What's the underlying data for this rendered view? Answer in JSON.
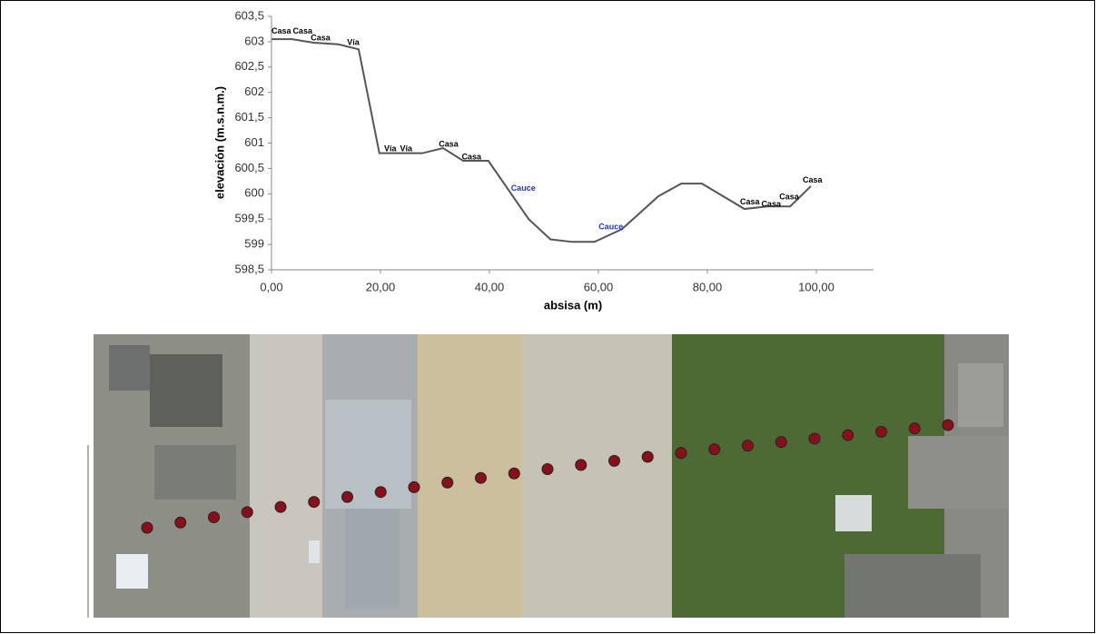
{
  "chart_data": {
    "type": "line",
    "xlabel": "absisa (m)",
    "ylabel": "elevación (m.s.n.m.)",
    "x": [
      0,
      3.8,
      7.7,
      12.2,
      16,
      19.8,
      23.5,
      27.7,
      31.5,
      35.2,
      39.8,
      47.2,
      51.2,
      55.2,
      59.3,
      64.3,
      71,
      75.2,
      79,
      86.8,
      91,
      95.2,
      99
    ],
    "series": [
      {
        "color": "#555555",
        "values": [
          603.05,
          603.05,
          602.98,
          602.95,
          602.85,
          600.8,
          600.8,
          600.8,
          600.9,
          600.65,
          600.65,
          599.5,
          599.1,
          599.05,
          599.05,
          599.3,
          599.95,
          600.2,
          600.2,
          599.7,
          599.75,
          599.75,
          600.15
        ]
      }
    ],
    "xlim": [
      0,
      110
    ],
    "xticks": [
      {
        "value": 0,
        "label": "0,00"
      },
      {
        "value": 20,
        "label": "20,00"
      },
      {
        "value": 40,
        "label": "40,00"
      },
      {
        "value": 60,
        "label": "60,00"
      },
      {
        "value": 80,
        "label": "80,00"
      },
      {
        "value": 100,
        "label": "100,00"
      }
    ],
    "ylim": [
      598.5,
      603.5
    ],
    "yticks": [
      {
        "value": 598.5,
        "label": "598,5"
      },
      599,
      {
        "value": 599.5,
        "label": "599,5"
      },
      600,
      {
        "value": 600.5,
        "label": "600,5"
      },
      601,
      {
        "value": 601.5,
        "label": "601,5"
      },
      602,
      {
        "value": 602.5,
        "label": "602,5"
      },
      603,
      {
        "value": 603.5,
        "label": "603,5"
      }
    ],
    "annotations": [
      {
        "text": "Casa",
        "x": 1.8,
        "y": 603.2,
        "color": "#000000"
      },
      {
        "text": "Casa",
        "x": 5.7,
        "y": 603.2,
        "color": "#000000"
      },
      {
        "text": "Casa",
        "x": 9,
        "y": 603.07,
        "color": "#000000"
      },
      {
        "text": "Vía",
        "x": 15,
        "y": 602.98,
        "color": "#000000"
      },
      {
        "text": "Vía",
        "x": 21.8,
        "y": 600.88,
        "color": "#000000"
      },
      {
        "text": "Vía",
        "x": 24.7,
        "y": 600.88,
        "color": "#000000"
      },
      {
        "text": "Casa",
        "x": 32.5,
        "y": 600.97,
        "color": "#000000"
      },
      {
        "text": "Casa",
        "x": 36.7,
        "y": 600.72,
        "color": "#000000"
      },
      {
        "text": "Cauce",
        "x": 46.2,
        "y": 600.1,
        "color": "#2233cc"
      },
      {
        "text": "Cauce",
        "x": 62.3,
        "y": 599.34,
        "color": "#2233cc"
      },
      {
        "text": "Casa",
        "x": 87.8,
        "y": 599.83,
        "color": "#000000"
      },
      {
        "text": "Casa",
        "x": 91.7,
        "y": 599.79,
        "color": "#000000"
      },
      {
        "text": "Casa",
        "x": 95,
        "y": 599.93,
        "color": "#000000"
      },
      {
        "text": "Casa",
        "x": 99.3,
        "y": 600.26,
        "color": "#000000"
      }
    ]
  }
}
